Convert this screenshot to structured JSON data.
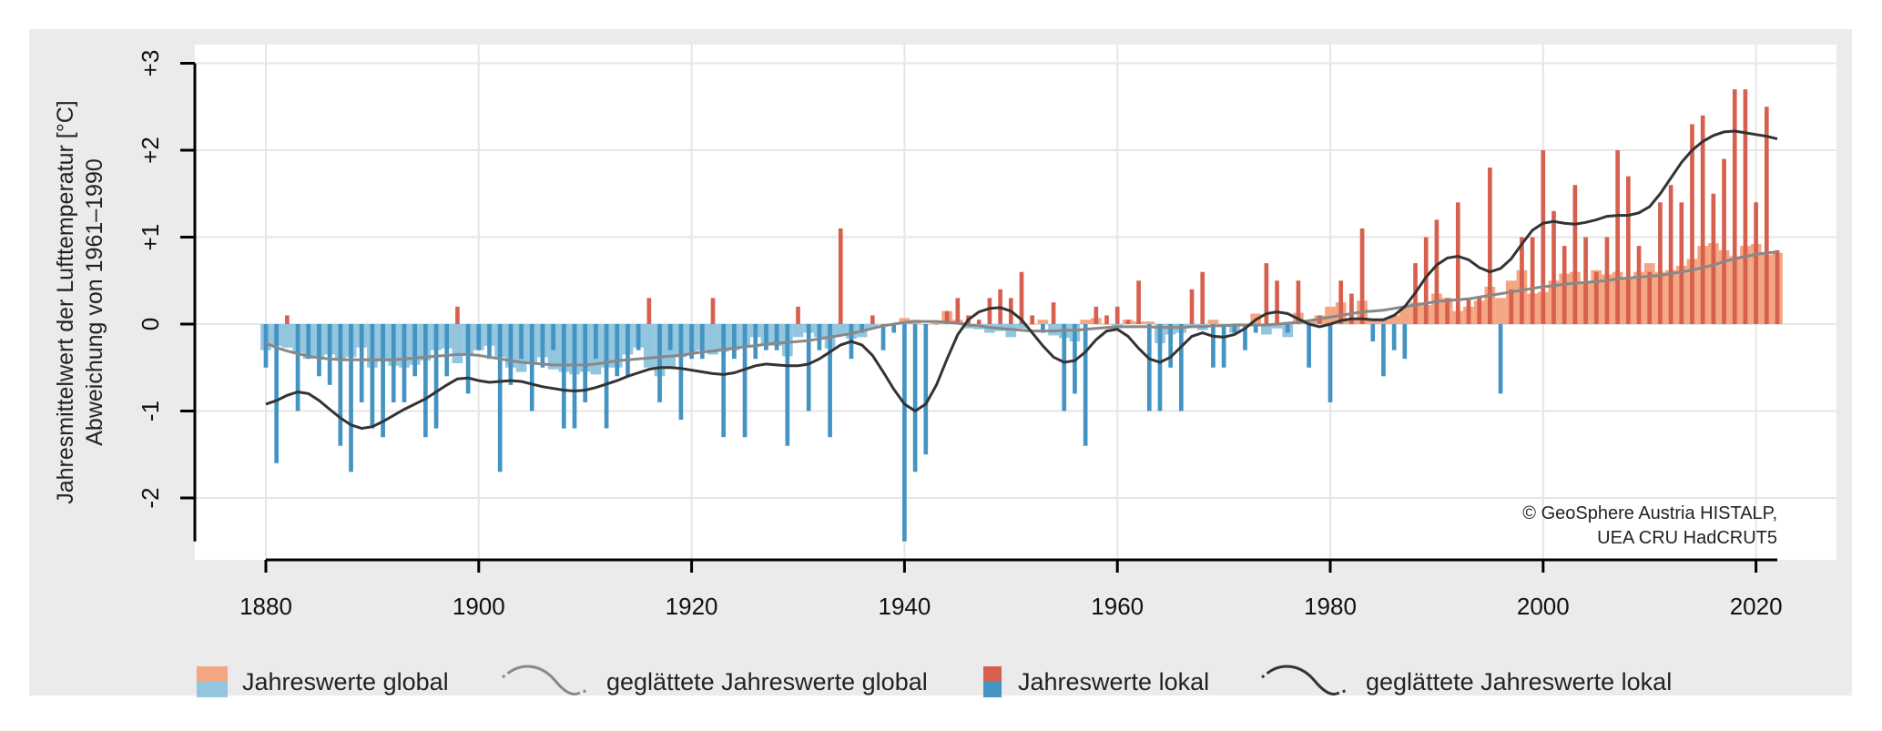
{
  "chart_data": {
    "type": "bar",
    "title": "",
    "ylabel_line1": "Jahresmittelwert der Lufttemperatur [°C]",
    "ylabel_line2": "Abweichung von 1961–1990",
    "xlim": [
      1880,
      2022
    ],
    "ylim": [
      -2.5,
      3
    ],
    "grid": true,
    "xticks": [
      1880,
      1900,
      1920,
      1940,
      1960,
      1980,
      2000,
      2020
    ],
    "yticks": [
      {
        "value": 3,
        "label": "+3"
      },
      {
        "value": 2,
        "label": "+2"
      },
      {
        "value": 1,
        "label": "+1"
      },
      {
        "value": 0,
        "label": "0"
      },
      {
        "value": -1,
        "label": "-1"
      },
      {
        "value": -2,
        "label": "-2"
      }
    ],
    "credit_line1": "© GeoSphere Austria HISTALP,",
    "credit_line2": "UEA CRU HadCRUT5",
    "legend_position": "bottom",
    "colors": {
      "global_pos": "#f4a582",
      "global_neg": "#92c5de",
      "local_pos": "#d6604d",
      "local_neg": "#4393c3",
      "smooth_global": "#888888",
      "smooth_local": "#333333"
    },
    "years": [
      1880,
      1881,
      1882,
      1883,
      1884,
      1885,
      1886,
      1887,
      1888,
      1889,
      1890,
      1891,
      1892,
      1893,
      1894,
      1895,
      1896,
      1897,
      1898,
      1899,
      1900,
      1901,
      1902,
      1903,
      1904,
      1905,
      1906,
      1907,
      1908,
      1909,
      1910,
      1911,
      1912,
      1913,
      1914,
      1915,
      1916,
      1917,
      1918,
      1919,
      1920,
      1921,
      1922,
      1923,
      1924,
      1925,
      1926,
      1927,
      1928,
      1929,
      1930,
      1931,
      1932,
      1933,
      1934,
      1935,
      1936,
      1937,
      1938,
      1939,
      1940,
      1941,
      1942,
      1943,
      1944,
      1945,
      1946,
      1947,
      1948,
      1949,
      1950,
      1951,
      1952,
      1953,
      1954,
      1955,
      1956,
      1957,
      1958,
      1959,
      1960,
      1961,
      1962,
      1963,
      1964,
      1965,
      1966,
      1967,
      1968,
      1969,
      1970,
      1971,
      1972,
      1973,
      1974,
      1975,
      1976,
      1977,
      1978,
      1979,
      1980,
      1981,
      1982,
      1983,
      1984,
      1985,
      1986,
      1987,
      1988,
      1989,
      1990,
      1991,
      1992,
      1993,
      1994,
      1995,
      1996,
      1997,
      1998,
      1999,
      2000,
      2001,
      2002,
      2003,
      2004,
      2005,
      2006,
      2007,
      2008,
      2009,
      2010,
      2011,
      2012,
      2013,
      2014,
      2015,
      2016,
      2017,
      2018,
      2019,
      2020,
      2021,
      2022
    ],
    "series": [
      {
        "name": "Jahreswerte global",
        "kind": "bar",
        "values": [
          -0.3,
          -0.25,
          -0.27,
          -0.33,
          -0.4,
          -0.38,
          -0.35,
          -0.42,
          -0.38,
          -0.27,
          -0.5,
          -0.43,
          -0.48,
          -0.5,
          -0.47,
          -0.42,
          -0.3,
          -0.28,
          -0.45,
          -0.35,
          -0.3,
          -0.25,
          -0.38,
          -0.5,
          -0.55,
          -0.45,
          -0.38,
          -0.52,
          -0.55,
          -0.58,
          -0.55,
          -0.58,
          -0.5,
          -0.5,
          -0.35,
          -0.27,
          -0.5,
          -0.6,
          -0.5,
          -0.38,
          -0.35,
          -0.3,
          -0.35,
          -0.32,
          -0.3,
          -0.25,
          -0.15,
          -0.25,
          -0.25,
          -0.37,
          -0.15,
          -0.1,
          -0.15,
          -0.28,
          -0.12,
          -0.17,
          -0.15,
          -0.05,
          0.0,
          0.0,
          0.07,
          0.05,
          0.0,
          0.03,
          0.15,
          0.05,
          -0.05,
          -0.06,
          -0.1,
          -0.08,
          -0.15,
          -0.05,
          0.0,
          0.05,
          -0.13,
          -0.16,
          -0.2,
          0.05,
          0.07,
          0.0,
          -0.05,
          0.05,
          0.03,
          0.03,
          -0.22,
          -0.12,
          -0.1,
          -0.03,
          -0.07,
          0.05,
          0.0,
          -0.1,
          0.0,
          0.12,
          -0.12,
          -0.05,
          -0.15,
          0.13,
          0.05,
          0.1,
          0.2,
          0.25,
          0.05,
          0.27,
          0.05,
          0.05,
          0.1,
          0.2,
          0.25,
          0.22,
          0.35,
          0.3,
          0.15,
          0.2,
          0.27,
          0.43,
          0.3,
          0.5,
          0.62,
          0.35,
          0.37,
          0.5,
          0.58,
          0.6,
          0.48,
          0.62,
          0.57,
          0.6,
          0.52,
          0.6,
          0.7,
          0.6,
          0.62,
          0.67,
          0.75,
          0.9,
          0.93,
          0.85,
          0.78,
          0.9,
          0.92,
          0.8,
          0.82
        ]
      },
      {
        "name": "Jahreswerte lokal",
        "kind": "bar",
        "values": [
          -0.5,
          -1.6,
          0.1,
          -1.0,
          -0.4,
          -0.6,
          -0.7,
          -1.4,
          -1.7,
          -0.9,
          -1.2,
          -1.3,
          -0.9,
          -0.9,
          -0.6,
          -1.3,
          -1.2,
          -0.6,
          0.2,
          -0.8,
          -0.3,
          -0.4,
          -1.7,
          -0.7,
          -0.4,
          -1.0,
          -0.5,
          -0.3,
          -1.2,
          -1.2,
          -0.9,
          -0.4,
          -1.2,
          -0.6,
          -0.6,
          -0.3,
          0.3,
          -0.9,
          -0.3,
          -1.1,
          -0.4,
          -0.4,
          0.3,
          -1.3,
          -0.4,
          -1.3,
          -0.4,
          -0.3,
          -0.3,
          -1.4,
          0.2,
          -1.0,
          -0.3,
          -1.3,
          1.1,
          -0.4,
          -0.1,
          0.1,
          -0.3,
          -0.1,
          -2.5,
          -1.7,
          -1.5,
          0.0,
          0.15,
          0.3,
          0.1,
          0.05,
          0.3,
          0.4,
          0.3,
          0.6,
          0.1,
          -0.1,
          0.25,
          -1.0,
          -0.8,
          -1.4,
          0.2,
          0.1,
          0.2,
          0.05,
          0.5,
          -1.0,
          -1.0,
          -0.5,
          -1.0,
          0.4,
          0.6,
          -0.5,
          -0.5,
          -0.1,
          -0.3,
          -0.1,
          0.7,
          0.5,
          -0.1,
          0.5,
          -0.5,
          0.1,
          -0.9,
          0.5,
          0.35,
          1.1,
          -0.2,
          -0.6,
          -0.3,
          -0.4,
          0.7,
          1.0,
          1.2,
          0.3,
          1.4,
          0.3,
          0.3,
          1.8,
          -0.8,
          0.4,
          1.0,
          1.0,
          2.0,
          1.3,
          0.9,
          1.6,
          1.0,
          0.6,
          1.0,
          2.0,
          1.7,
          0.9,
          0.6,
          1.4,
          1.6,
          1.4,
          2.3,
          2.4,
          1.5,
          1.9,
          2.7,
          2.7,
          1.4,
          2.5,
          0.85
        ]
      },
      {
        "name": "geglättete Jahreswerte global",
        "kind": "line",
        "values": [
          -0.22,
          -0.27,
          -0.31,
          -0.34,
          -0.37,
          -0.39,
          -0.4,
          -0.41,
          -0.41,
          -0.41,
          -0.41,
          -0.41,
          -0.41,
          -0.4,
          -0.39,
          -0.38,
          -0.37,
          -0.36,
          -0.35,
          -0.35,
          -0.36,
          -0.38,
          -0.4,
          -0.42,
          -0.44,
          -0.45,
          -0.46,
          -0.47,
          -0.47,
          -0.47,
          -0.47,
          -0.46,
          -0.44,
          -0.42,
          -0.41,
          -0.4,
          -0.39,
          -0.38,
          -0.37,
          -0.36,
          -0.34,
          -0.32,
          -0.31,
          -0.29,
          -0.28,
          -0.26,
          -0.25,
          -0.23,
          -0.22,
          -0.21,
          -0.2,
          -0.19,
          -0.17,
          -0.15,
          -0.13,
          -0.11,
          -0.08,
          -0.05,
          -0.02,
          0.0,
          0.02,
          0.03,
          0.03,
          0.03,
          0.02,
          0.01,
          -0.01,
          -0.02,
          -0.04,
          -0.05,
          -0.06,
          -0.07,
          -0.08,
          -0.08,
          -0.08,
          -0.07,
          -0.07,
          -0.06,
          -0.05,
          -0.04,
          -0.03,
          -0.03,
          -0.03,
          -0.03,
          -0.04,
          -0.04,
          -0.04,
          -0.03,
          -0.03,
          -0.02,
          -0.02,
          -0.01,
          -0.01,
          -0.01,
          -0.01,
          0.0,
          0.01,
          0.02,
          0.04,
          0.06,
          0.08,
          0.1,
          0.12,
          0.14,
          0.15,
          0.16,
          0.18,
          0.2,
          0.22,
          0.24,
          0.26,
          0.27,
          0.28,
          0.29,
          0.31,
          0.33,
          0.35,
          0.37,
          0.39,
          0.41,
          0.43,
          0.44,
          0.46,
          0.47,
          0.48,
          0.49,
          0.5,
          0.52,
          0.53,
          0.54,
          0.55,
          0.56,
          0.58,
          0.6,
          0.62,
          0.65,
          0.68,
          0.72,
          0.75,
          0.78,
          0.8,
          0.82,
          0.83
        ]
      },
      {
        "name": "geglättete Jahreswerte lokal",
        "kind": "line",
        "values": [
          -0.92,
          -0.88,
          -0.82,
          -0.78,
          -0.8,
          -0.88,
          -0.98,
          -1.08,
          -1.16,
          -1.2,
          -1.18,
          -1.12,
          -1.05,
          -0.98,
          -0.92,
          -0.86,
          -0.78,
          -0.7,
          -0.63,
          -0.62,
          -0.65,
          -0.67,
          -0.66,
          -0.65,
          -0.66,
          -0.69,
          -0.72,
          -0.74,
          -0.76,
          -0.77,
          -0.76,
          -0.73,
          -0.69,
          -0.65,
          -0.6,
          -0.56,
          -0.52,
          -0.5,
          -0.5,
          -0.51,
          -0.53,
          -0.55,
          -0.57,
          -0.58,
          -0.56,
          -0.52,
          -0.48,
          -0.46,
          -0.47,
          -0.48,
          -0.48,
          -0.46,
          -0.4,
          -0.32,
          -0.24,
          -0.2,
          -0.24,
          -0.36,
          -0.55,
          -0.75,
          -0.92,
          -1.0,
          -0.92,
          -0.7,
          -0.4,
          -0.12,
          0.05,
          0.14,
          0.18,
          0.19,
          0.15,
          0.05,
          -0.1,
          -0.25,
          -0.38,
          -0.44,
          -0.42,
          -0.32,
          -0.18,
          -0.08,
          -0.06,
          -0.14,
          -0.28,
          -0.4,
          -0.44,
          -0.38,
          -0.26,
          -0.14,
          -0.1,
          -0.14,
          -0.15,
          -0.12,
          -0.05,
          0.05,
          0.12,
          0.14,
          0.12,
          0.06,
          0.0,
          -0.03,
          0.0,
          0.04,
          0.06,
          0.06,
          0.05,
          0.05,
          0.1,
          0.2,
          0.36,
          0.54,
          0.68,
          0.76,
          0.78,
          0.74,
          0.65,
          0.6,
          0.64,
          0.75,
          0.92,
          1.08,
          1.16,
          1.18,
          1.16,
          1.15,
          1.17,
          1.2,
          1.24,
          1.25,
          1.25,
          1.28,
          1.35,
          1.5,
          1.68,
          1.86,
          2.0,
          2.1,
          2.17,
          2.21,
          2.22,
          2.2,
          2.18,
          2.16,
          2.13
        ]
      }
    ]
  },
  "legend": [
    {
      "label": "Jahreswerte global",
      "key": "global_bars"
    },
    {
      "label": "geglättete Jahreswerte global",
      "key": "global_smooth"
    },
    {
      "label": "Jahreswerte lokal",
      "key": "local_bars"
    },
    {
      "label": "geglättete Jahreswerte lokal",
      "key": "local_smooth"
    }
  ]
}
